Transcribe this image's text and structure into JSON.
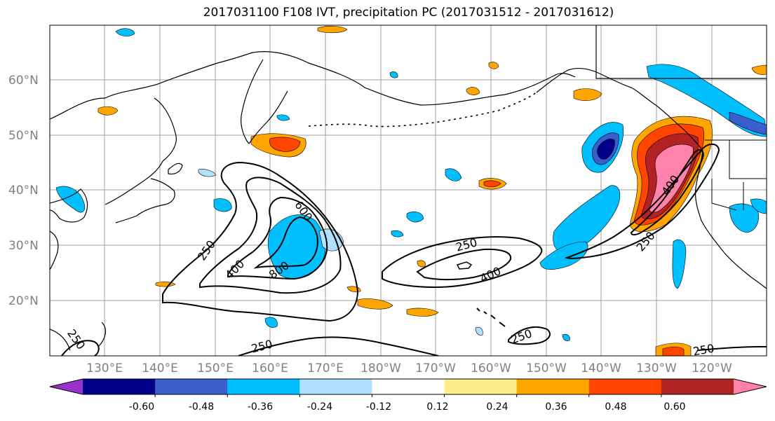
{
  "title": "2017031100 F108 IVT, precipitation PC (2017031512 - 2017031612)",
  "map": {
    "lat_ticks": [
      "20°N",
      "30°N",
      "40°N",
      "50°N",
      "60°N"
    ],
    "lon_ticks": [
      "130°E",
      "140°E",
      "150°E",
      "160°E",
      "170°E",
      "180°W",
      "170°W",
      "160°W",
      "150°W",
      "140°W",
      "130°W",
      "120°W"
    ],
    "contour_labels": [
      "250",
      "400",
      "600",
      "800",
      "250",
      "400",
      "250",
      "400",
      "250",
      "250",
      "250",
      "250"
    ]
  },
  "colorbar": {
    "colors": [
      "#9932cc",
      "#00008b",
      "#3a5fcd",
      "#00bfff",
      "#b0e2ff",
      "#ffffff",
      "#ffec8b",
      "#ffa500",
      "#ff4500",
      "#b22222",
      "#ff82ab"
    ],
    "tick_labels": [
      "-0.60",
      "-0.48",
      "-0.36",
      "-0.24",
      "-0.12",
      "0.12",
      "0.24",
      "0.36",
      "0.48",
      "0.60"
    ]
  }
}
